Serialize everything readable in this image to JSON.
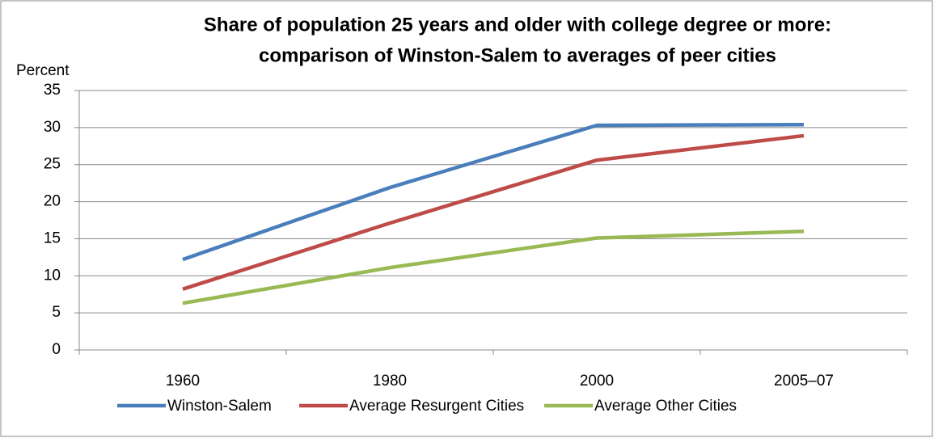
{
  "chart_data": {
    "type": "line",
    "title": [
      "Share of population 25 years and older with college degree or more:",
      "comparison of Winston-Salem to averages of peer cities"
    ],
    "ylabel": "Percent",
    "categories": [
      "1960",
      "1980",
      "2000",
      "2005–07"
    ],
    "series": [
      {
        "name": "Winston-Salem",
        "color": "#4a7ebb",
        "values": [
          12.2,
          21.9,
          30.3,
          30.4
        ]
      },
      {
        "name": "Average Resurgent Cities",
        "color": "#be4b48",
        "values": [
          8.2,
          17.1,
          25.6,
          28.9
        ]
      },
      {
        "name": "Average Other Cities",
        "color": "#98b954",
        "values": [
          6.3,
          11.1,
          15.1,
          16.0
        ]
      }
    ],
    "ylim": [
      0,
      35
    ],
    "yticks": [
      0,
      5,
      10,
      15,
      20,
      25,
      30,
      35
    ],
    "grid": true,
    "legend": "bottom"
  }
}
